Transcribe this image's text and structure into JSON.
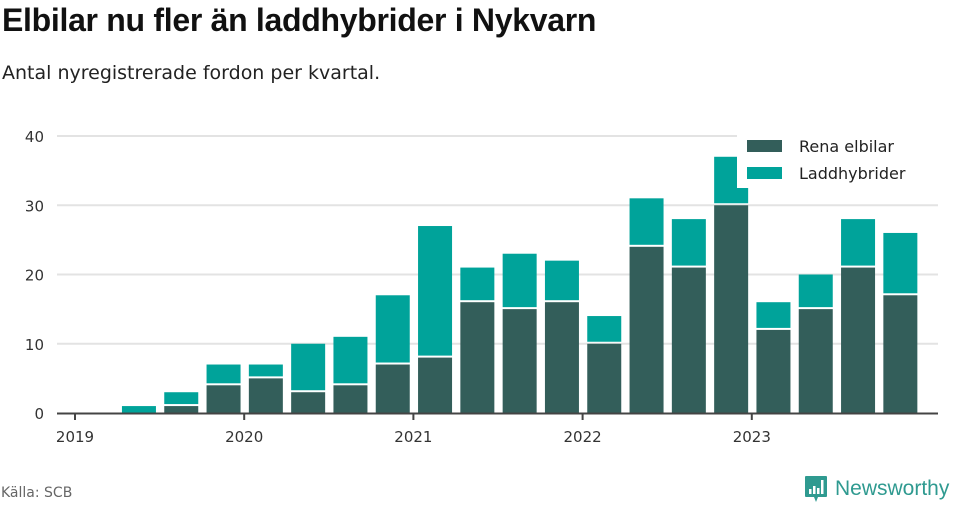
{
  "header": {
    "title": "Elbilar nu fler än laddhybrider i Nykvarn",
    "subtitle": "Antal nyregistrerade fordon per kvartal."
  },
  "footer": {
    "source": "Källa: SCB",
    "brand": "Newsworthy",
    "brand_icon": "bar-chart-speech-bubble-icon"
  },
  "colors": {
    "elbilar": "#335e5a",
    "laddhybrider": "#00a39a",
    "grid": "#e3e3e3",
    "axis": "#444444",
    "brand": "#2f9a90"
  },
  "chart_data": {
    "type": "bar",
    "stacked": true,
    "title": "Elbilar nu fler än laddhybrider i Nykvarn",
    "subtitle": "Antal nyregistrerade fordon per kvartal.",
    "xlabel": "",
    "ylabel": "",
    "ylim": [
      0,
      40
    ],
    "yticks": [
      0,
      10,
      20,
      30,
      40
    ],
    "xtick_labels": [
      "2019",
      "2020",
      "2021",
      "2022",
      "2023"
    ],
    "grid": true,
    "legend_position": "top-right",
    "categories": [
      "2019 Q1",
      "2019 Q2",
      "2019 Q3",
      "2019 Q4",
      "2020 Q1",
      "2020 Q2",
      "2020 Q3",
      "2020 Q4",
      "2021 Q1",
      "2021 Q2",
      "2021 Q3",
      "2021 Q4",
      "2022 Q1",
      "2022 Q2",
      "2022 Q3",
      "2022 Q4",
      "2023 Q1",
      "2023 Q2",
      "2023 Q3",
      "2023 Q4"
    ],
    "series": [
      {
        "name": "Rena elbilar",
        "color": "#335e5a",
        "values": [
          0,
          0,
          1,
          4,
          5,
          3,
          4,
          7,
          8,
          16,
          15,
          16,
          10,
          24,
          21,
          30,
          12,
          15,
          21,
          17
        ]
      },
      {
        "name": "Laddhybrider",
        "color": "#00a39a",
        "values": [
          0,
          1,
          2,
          3,
          2,
          7,
          7,
          10,
          19,
          5,
          8,
          6,
          4,
          7,
          7,
          7,
          4,
          5,
          7,
          9
        ]
      }
    ]
  }
}
